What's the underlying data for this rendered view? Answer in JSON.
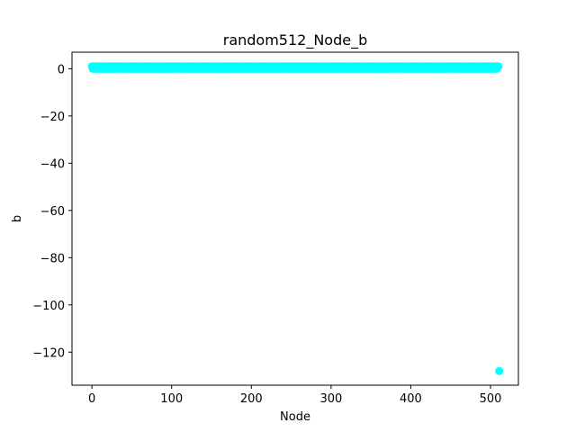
{
  "chart_data": {
    "type": "scatter",
    "title": "random512_Node_b",
    "xlabel": "Node",
    "ylabel": "b",
    "xlim": [
      -25,
      535
    ],
    "ylim": [
      -134,
      7
    ],
    "x_ticks": [
      0,
      100,
      200,
      300,
      400,
      500
    ],
    "x_tick_labels": [
      "0",
      "100",
      "200",
      "300",
      "400",
      "500"
    ],
    "y_ticks": [
      0,
      -20,
      -40,
      -60,
      -80,
      -100,
      -120
    ],
    "y_tick_labels": [
      "0",
      "−20",
      "−40",
      "−60",
      "−80",
      "−100",
      "−120"
    ],
    "grid": false,
    "marker_color": "#00ffff",
    "series": [
      {
        "values_note_hidden": "",
        "x_start": 0,
        "x_end": 510,
        "y_pattern": [
          1,
          0,
          1,
          0,
          0,
          1,
          1,
          0
        ],
        "outlier": {
          "x": 511,
          "y": -128
        }
      }
    ]
  }
}
